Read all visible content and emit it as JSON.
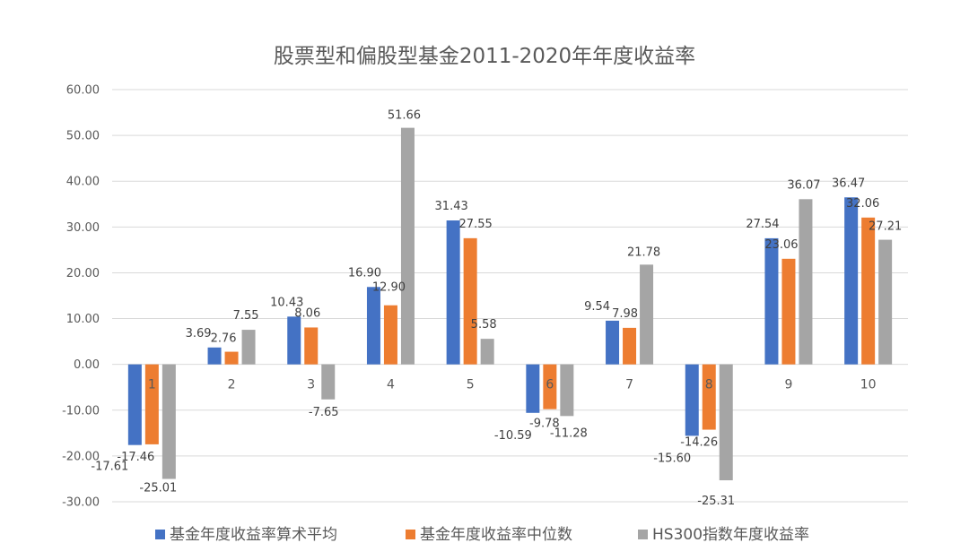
{
  "chart_data": {
    "type": "bar",
    "title": "股票型和偏股型基金2011-2020年年度收益率",
    "xlabel": "",
    "ylabel": "",
    "categories": [
      "1",
      "2",
      "3",
      "4",
      "5",
      "6",
      "7",
      "8",
      "9",
      "10"
    ],
    "ylim": [
      -30,
      60
    ],
    "yticks": [
      60,
      50,
      40,
      30,
      20,
      10,
      0,
      -10,
      -20,
      -30
    ],
    "ytick_labels": [
      "60.00",
      "50.00",
      "40.00",
      "30.00",
      "20.00",
      "10.00",
      "0.00",
      "-10.00",
      "-20.00",
      "-30.00"
    ],
    "grid": true,
    "legend_position": "bottom",
    "series": [
      {
        "name": "基金年度收益率算术平均",
        "color": "#4472C4",
        "values": [
          -17.61,
          3.69,
          10.43,
          16.9,
          31.43,
          -10.59,
          9.54,
          -15.6,
          27.54,
          36.47
        ],
        "labels": [
          "-17.61",
          "3.69",
          "10.43",
          "16.90",
          "31.43",
          "-10.59",
          "9.54",
          "-15.60",
          "27.54",
          "36.47"
        ]
      },
      {
        "name": "基金年度收益率中位数",
        "color": "#ED7D31",
        "values": [
          -17.46,
          2.76,
          8.06,
          12.9,
          27.55,
          -9.78,
          7.98,
          -14.26,
          23.06,
          32.06
        ],
        "labels": [
          "-17.46",
          "2.76",
          "8.06",
          "12.90",
          "27.55",
          "-9.78",
          "7.98",
          "-14.26",
          "23.06",
          "32.06"
        ]
      },
      {
        "name": "HS300指数年度收益率",
        "color": "#A5A5A5",
        "values": [
          -25.01,
          7.55,
          -7.65,
          51.66,
          5.58,
          -11.28,
          21.78,
          -25.31,
          36.07,
          27.21
        ],
        "labels": [
          "-25.01",
          "7.55",
          "-7.65",
          "51.66",
          "5.58",
          "-11.28",
          "21.78",
          "-25.31",
          "36.07",
          "27.21"
        ]
      }
    ]
  }
}
